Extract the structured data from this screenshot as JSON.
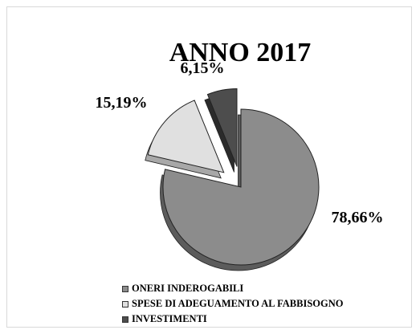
{
  "chart_data": {
    "type": "pie",
    "style": "3d-exploded",
    "title": "ANNO 2017",
    "categories": [
      "ONERI INDEROGABILI",
      "SPESE DI ADEGUAMENTO AL FABBISOGNO",
      "INVESTIMENTI"
    ],
    "values": [
      78.66,
      15.19,
      6.15
    ],
    "data_labels": [
      "78,66%",
      "15,19%",
      "6,15%"
    ],
    "colors": [
      "#8c8c8c",
      "#e0e0e0",
      "#4d4d4d"
    ],
    "side_colors": [
      "#5c5c5c",
      "#a8a8a8",
      "#2b2b2b"
    ],
    "legend_position": "bottom-left"
  }
}
